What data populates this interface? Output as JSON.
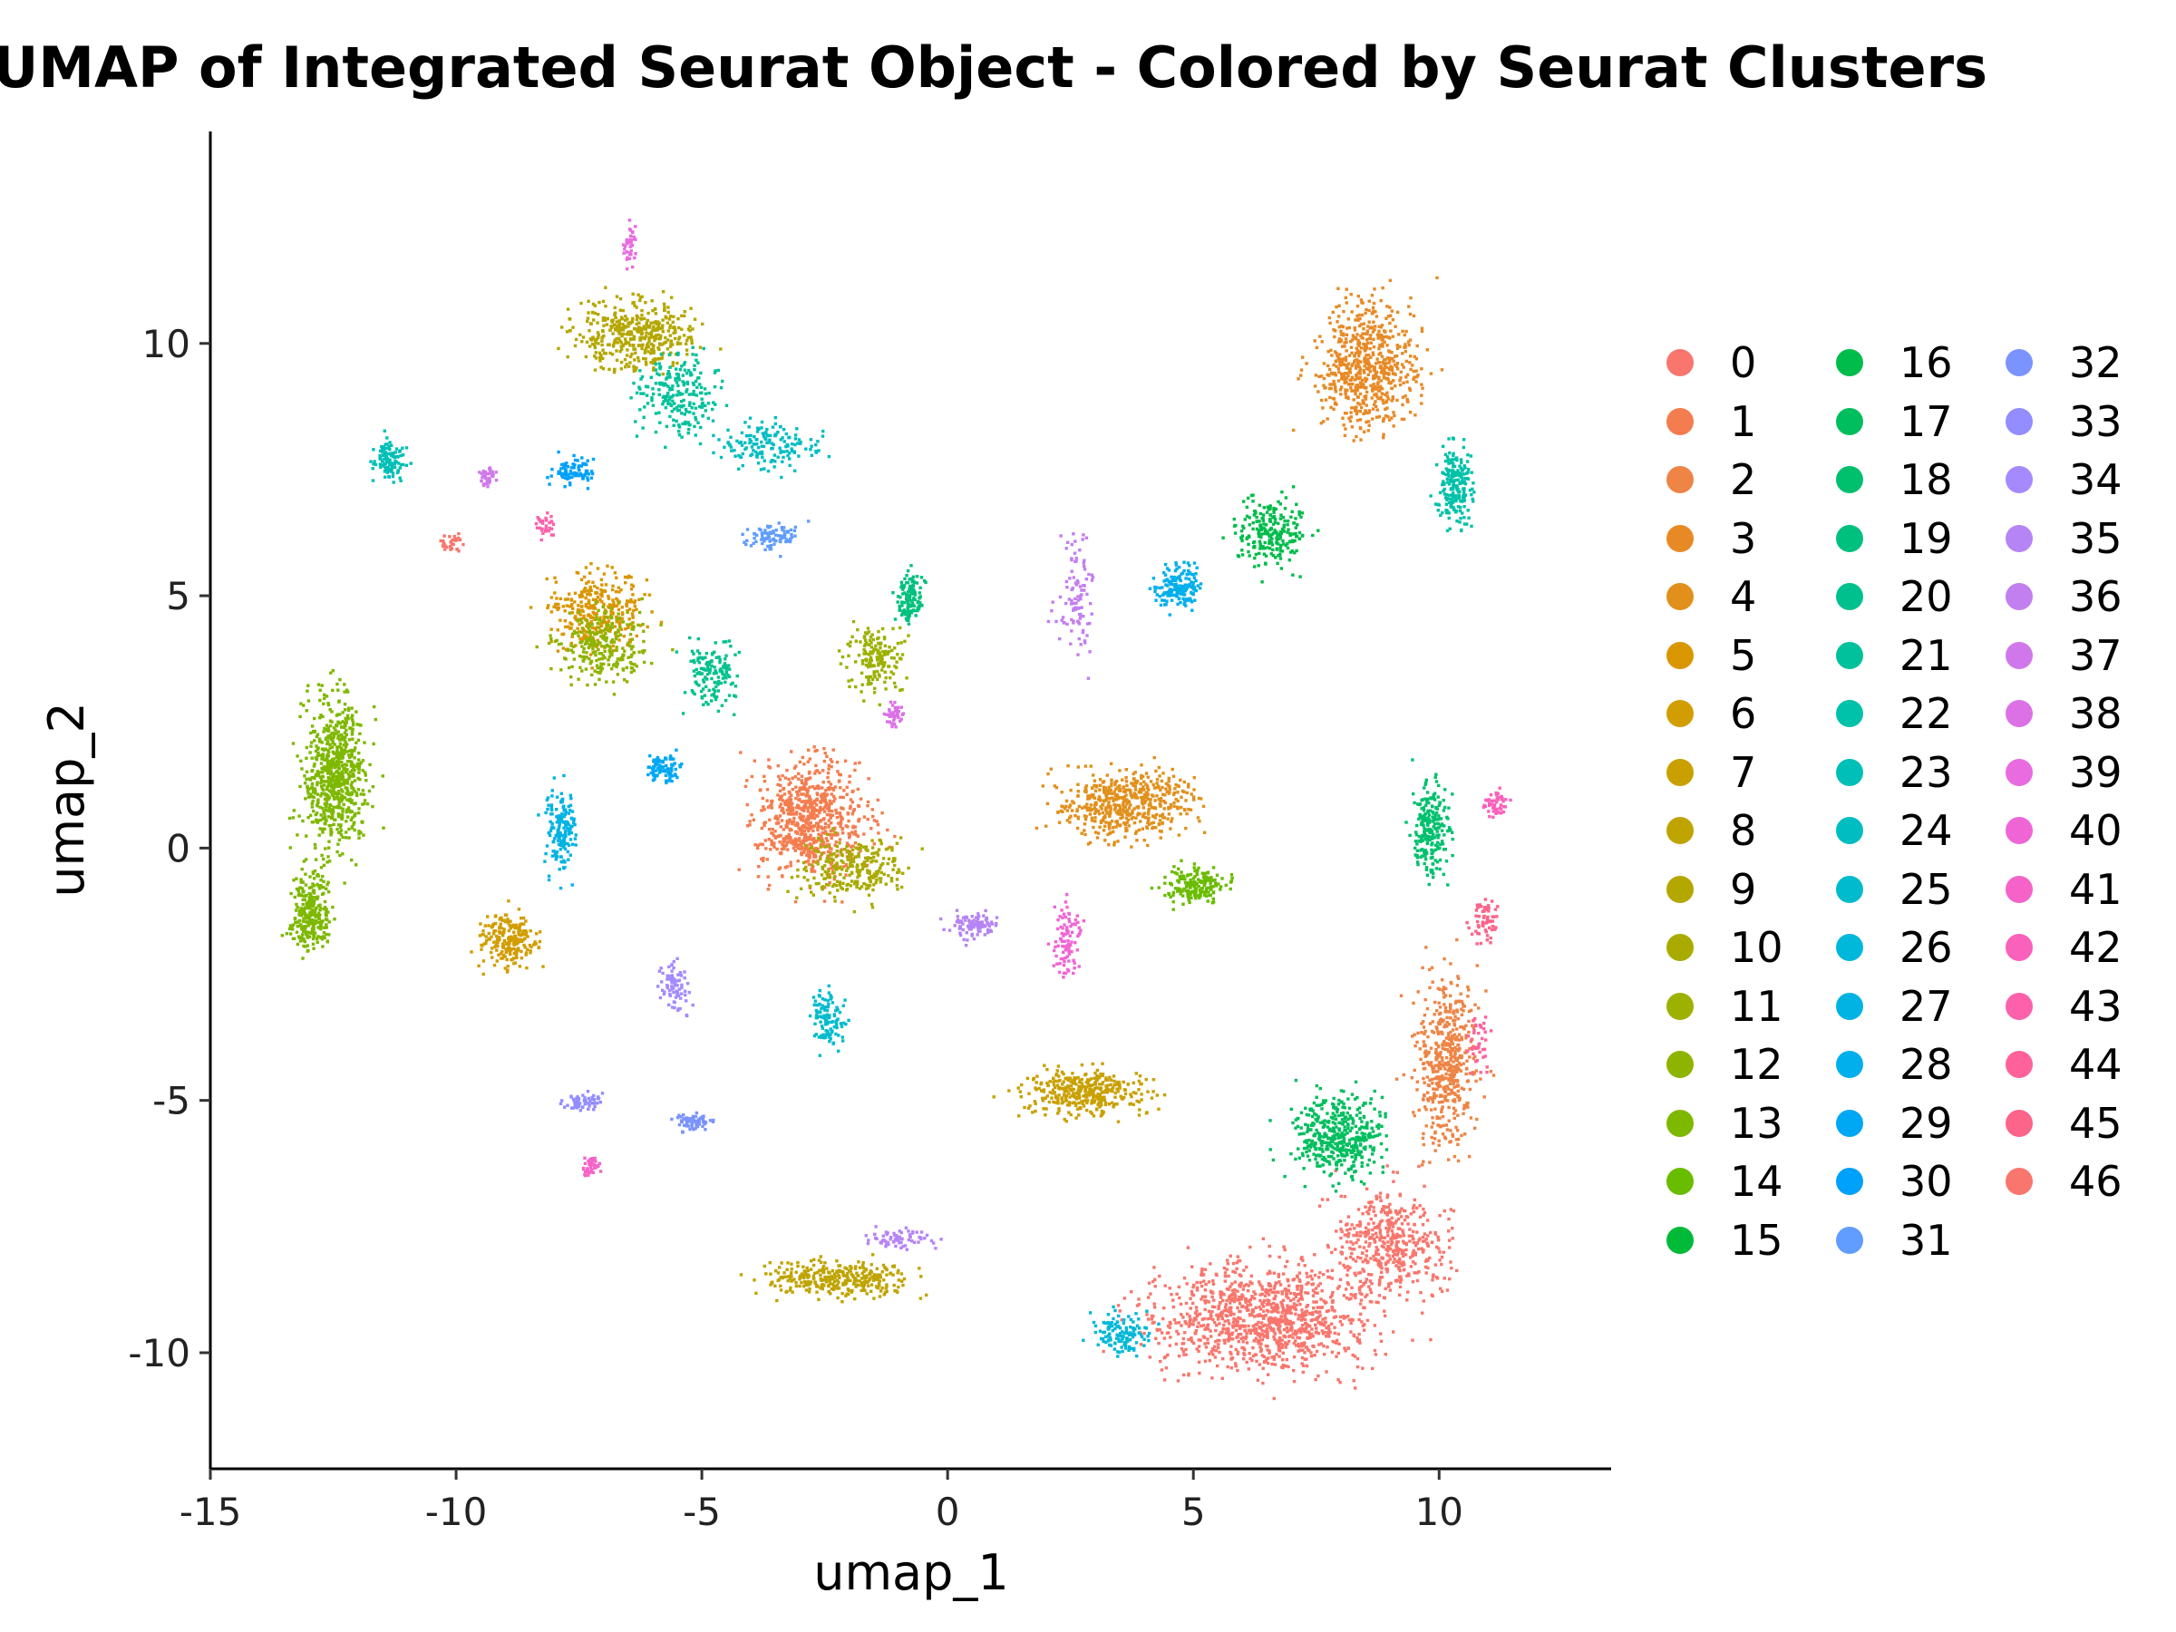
{
  "chart_data": {
    "type": "scatter",
    "title": "UMAP of Integrated Seurat Object - Colored by Seurat Clusters",
    "xlabel": "umap_1",
    "ylabel": "umap_2",
    "xlim": [
      -15,
      13.5
    ],
    "ylim": [
      -12.3,
      14.2
    ],
    "xticks": [
      -15,
      -10,
      -5,
      0,
      5,
      10
    ],
    "yticks": [
      -10,
      -5,
      0,
      5,
      10
    ],
    "xtick_labels": [
      "-15",
      "-10",
      "-5",
      "0",
      "5",
      "10"
    ],
    "ytick_labels": [
      "-10",
      "-5",
      "0",
      "5",
      "10"
    ],
    "grid": false,
    "legend_position": "right",
    "legend_columns": 3,
    "palette": [
      "#F8766D",
      "#F47D4F",
      "#EE8445",
      "#E78A26",
      "#E1901C",
      "#DA9600",
      "#D29D00",
      "#C9A000",
      "#BFA400",
      "#B4A700",
      "#A9AB00",
      "#9CB100",
      "#8EB400",
      "#7EB800",
      "#6ABC00",
      "#00BA38",
      "#00BC4B",
      "#00BE5E",
      "#00C06E",
      "#00C07E",
      "#00C18D",
      "#00C19B",
      "#00C1A9",
      "#00BFB6",
      "#00BDC2",
      "#00BBCE",
      "#00B8D9",
      "#00B3E3",
      "#00AFEC",
      "#00A8F3",
      "#00A1FA",
      "#619CFF",
      "#7A93FF",
      "#938DFF",
      "#A58AFF",
      "#B584F5",
      "#C27FF0",
      "#D078EB",
      "#DC71E6",
      "#E86BE0",
      "#F065D5",
      "#F563C8",
      "#FA61BA",
      "#FD61AB",
      "#FF629B",
      "#FC6489",
      "#F8766D"
    ],
    "clusters": [
      "0",
      "1",
      "2",
      "3",
      "4",
      "5",
      "6",
      "7",
      "8",
      "9",
      "10",
      "11",
      "12",
      "13",
      "14",
      "15",
      "16",
      "17",
      "18",
      "19",
      "20",
      "21",
      "22",
      "23",
      "24",
      "25",
      "26",
      "27",
      "28",
      "29",
      "30",
      "31",
      "32",
      "33",
      "34",
      "35",
      "36",
      "37",
      "38",
      "39",
      "40",
      "41",
      "42",
      "43",
      "44",
      "45",
      "46"
    ],
    "regions": [
      {
        "cluster": 0,
        "cx": 6.5,
        "cy": -9.3,
        "rx": 3.5,
        "ry": 1.6,
        "n": 1100
      },
      {
        "cluster": 0,
        "cx": 9.0,
        "cy": -7.8,
        "rx": 1.8,
        "ry": 1.6,
        "n": 450
      },
      {
        "cluster": 1,
        "cx": -2.8,
        "cy": 0.6,
        "rx": 1.7,
        "ry": 1.8,
        "n": 750
      },
      {
        "cluster": 2,
        "cx": 10.1,
        "cy": -4.2,
        "rx": 1.0,
        "ry": 2.6,
        "n": 500
      },
      {
        "cluster": 3,
        "cx": 8.5,
        "cy": 9.6,
        "rx": 1.6,
        "ry": 1.8,
        "n": 650
      },
      {
        "cluster": 4,
        "cx": 3.6,
        "cy": 0.9,
        "rx": 2.1,
        "ry": 1.0,
        "n": 520
      },
      {
        "cluster": 5,
        "cx": -7.2,
        "cy": 4.7,
        "rx": 1.4,
        "ry": 1.2,
        "n": 320
      },
      {
        "cluster": 6,
        "cx": -9.0,
        "cy": -1.8,
        "rx": 0.9,
        "ry": 0.8,
        "n": 220
      },
      {
        "cluster": 7,
        "cx": 2.8,
        "cy": -4.8,
        "rx": 1.9,
        "ry": 0.7,
        "n": 360
      },
      {
        "cluster": 8,
        "cx": -2.3,
        "cy": -8.5,
        "rx": 2.1,
        "ry": 0.5,
        "n": 330
      },
      {
        "cluster": 9,
        "cx": -6.4,
        "cy": 10.2,
        "rx": 1.8,
        "ry": 1.1,
        "n": 430
      },
      {
        "cluster": 10,
        "cx": -1.9,
        "cy": -0.4,
        "rx": 1.6,
        "ry": 0.9,
        "n": 260
      },
      {
        "cluster": 11,
        "cx": -1.5,
        "cy": 3.8,
        "rx": 0.9,
        "ry": 1.0,
        "n": 170
      },
      {
        "cluster": 12,
        "cx": -7.0,
        "cy": 4.0,
        "rx": 1.4,
        "ry": 1.2,
        "n": 250
      },
      {
        "cluster": 13,
        "cx": -12.5,
        "cy": 1.5,
        "rx": 1.0,
        "ry": 2.2,
        "n": 700
      },
      {
        "cluster": 13,
        "cx": -13.0,
        "cy": -1.2,
        "rx": 0.6,
        "ry": 1.2,
        "n": 280
      },
      {
        "cluster": 14,
        "cx": 5.0,
        "cy": -0.7,
        "rx": 1.0,
        "ry": 0.5,
        "n": 180
      },
      {
        "cluster": 16,
        "cx": 6.5,
        "cy": 6.3,
        "rx": 1.1,
        "ry": 1.0,
        "n": 230
      },
      {
        "cluster": 17,
        "cx": 7.9,
        "cy": -5.7,
        "rx": 1.4,
        "ry": 1.3,
        "n": 430
      },
      {
        "cluster": 18,
        "cx": 9.8,
        "cy": 0.4,
        "rx": 0.6,
        "ry": 1.4,
        "n": 230
      },
      {
        "cluster": 19,
        "cx": -0.8,
        "cy": 5.0,
        "rx": 0.4,
        "ry": 0.8,
        "n": 130
      },
      {
        "cluster": 20,
        "cx": -4.8,
        "cy": 3.5,
        "rx": 0.8,
        "ry": 1.0,
        "n": 140
      },
      {
        "cluster": 21,
        "cx": -5.5,
        "cy": 9.0,
        "rx": 1.2,
        "ry": 1.2,
        "n": 220
      },
      {
        "cluster": 22,
        "cx": 10.3,
        "cy": 7.2,
        "rx": 0.5,
        "ry": 1.2,
        "n": 200
      },
      {
        "cluster": 23,
        "cx": -11.4,
        "cy": 7.7,
        "rx": 0.5,
        "ry": 0.6,
        "n": 110
      },
      {
        "cluster": 24,
        "cx": -3.6,
        "cy": 8.0,
        "rx": 1.6,
        "ry": 0.7,
        "n": 160
      },
      {
        "cluster": 25,
        "cx": -2.5,
        "cy": -3.4,
        "rx": 0.5,
        "ry": 0.9,
        "n": 110
      },
      {
        "cluster": 26,
        "cx": 3.5,
        "cy": -9.6,
        "rx": 0.9,
        "ry": 0.6,
        "n": 130
      },
      {
        "cluster": 27,
        "cx": -7.9,
        "cy": 0.4,
        "rx": 0.5,
        "ry": 1.3,
        "n": 160
      },
      {
        "cluster": 28,
        "cx": 4.7,
        "cy": 5.2,
        "rx": 0.7,
        "ry": 0.6,
        "n": 170
      },
      {
        "cluster": 29,
        "cx": -5.8,
        "cy": 1.6,
        "rx": 0.5,
        "ry": 0.4,
        "n": 90
      },
      {
        "cluster": 30,
        "cx": -7.6,
        "cy": 7.5,
        "rx": 0.6,
        "ry": 0.5,
        "n": 80
      },
      {
        "cluster": 31,
        "cx": -3.6,
        "cy": 6.2,
        "rx": 0.8,
        "ry": 0.4,
        "n": 90
      },
      {
        "cluster": 32,
        "cx": -5.2,
        "cy": -5.4,
        "rx": 0.6,
        "ry": 0.3,
        "n": 70
      },
      {
        "cluster": 33,
        "cx": -7.5,
        "cy": -5.0,
        "rx": 0.6,
        "ry": 0.3,
        "n": 60
      },
      {
        "cluster": 34,
        "cx": -5.6,
        "cy": -2.7,
        "rx": 0.4,
        "ry": 0.8,
        "n": 80
      },
      {
        "cluster": 35,
        "cx": 0.5,
        "cy": -1.5,
        "rx": 0.7,
        "ry": 0.4,
        "n": 100
      },
      {
        "cluster": 35,
        "cx": -1.0,
        "cy": -7.7,
        "rx": 1.0,
        "ry": 0.3,
        "n": 70
      },
      {
        "cluster": 36,
        "cx": 2.6,
        "cy": 5.0,
        "rx": 0.6,
        "ry": 1.8,
        "n": 100
      },
      {
        "cluster": 37,
        "cx": -9.4,
        "cy": 7.4,
        "rx": 0.3,
        "ry": 0.3,
        "n": 40
      },
      {
        "cluster": 38,
        "cx": -1.1,
        "cy": 2.7,
        "rx": 0.3,
        "ry": 0.3,
        "n": 40
      },
      {
        "cluster": 39,
        "cx": -6.5,
        "cy": 12.0,
        "rx": 0.2,
        "ry": 0.7,
        "n": 40
      },
      {
        "cluster": 40,
        "cx": 2.4,
        "cy": -1.8,
        "rx": 0.4,
        "ry": 1.1,
        "n": 90
      },
      {
        "cluster": 41,
        "cx": -7.3,
        "cy": -6.3,
        "rx": 0.3,
        "ry": 0.3,
        "n": 40
      },
      {
        "cluster": 42,
        "cx": 11.1,
        "cy": 0.9,
        "rx": 0.4,
        "ry": 0.4,
        "n": 50
      },
      {
        "cluster": 43,
        "cx": -8.2,
        "cy": 6.4,
        "rx": 0.3,
        "ry": 0.3,
        "n": 30
      },
      {
        "cluster": 44,
        "cx": 10.8,
        "cy": -3.8,
        "rx": 0.3,
        "ry": 1.0,
        "n": 40
      },
      {
        "cluster": 45,
        "cx": 10.9,
        "cy": -1.4,
        "rx": 0.4,
        "ry": 0.6,
        "n": 60
      },
      {
        "cluster": 46,
        "cx": -10.1,
        "cy": 6.1,
        "rx": 0.3,
        "ry": 0.3,
        "n": 30
      }
    ]
  }
}
